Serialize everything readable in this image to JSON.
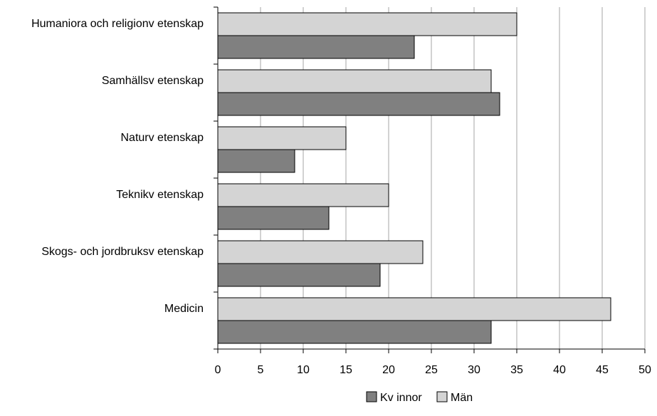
{
  "chart_data": {
    "type": "bar",
    "orientation": "horizontal",
    "categories": [
      "Humaniora och religionv etenskap",
      "Samhällsv etenskap",
      "Naturv etenskap",
      "Teknikv etenskap",
      "Skogs- och jordbruksv etenskap",
      "Medicin"
    ],
    "series": [
      {
        "name": "Kv innor",
        "values": [
          23,
          33,
          9,
          13,
          19,
          32
        ],
        "color": "#808080"
      },
      {
        "name": "Män",
        "values": [
          35,
          32,
          15,
          20,
          24,
          46
        ],
        "color": "#d4d4d4"
      }
    ],
    "xlim": [
      0,
      50
    ],
    "xticks": [
      "0",
      "5",
      "10",
      "15",
      "20",
      "25",
      "30",
      "35",
      "40",
      "45",
      "50"
    ],
    "grid": "vertical",
    "legend": "bottom",
    "title": "",
    "xlabel": "",
    "ylabel": ""
  }
}
